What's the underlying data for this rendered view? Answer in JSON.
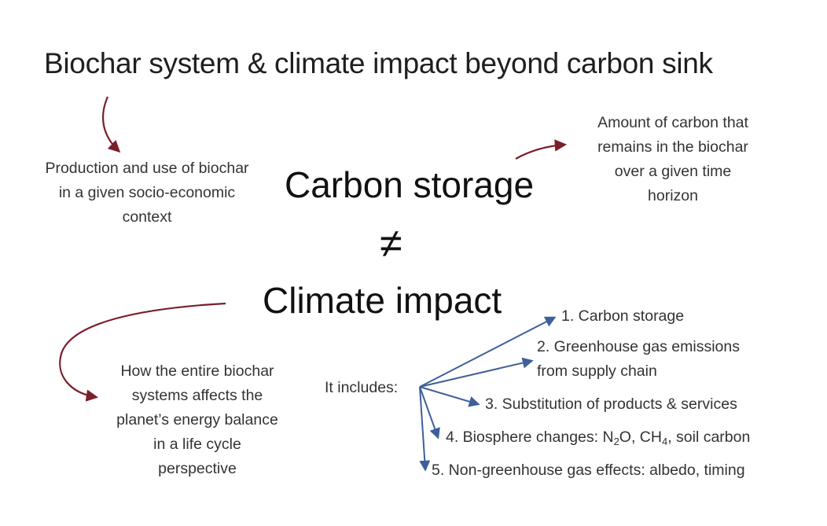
{
  "title": "Biochar system & climate impact beyond carbon sink",
  "notes": {
    "biochar_system": [
      "Production and use of biochar",
      "in a given socio-economic",
      "context"
    ],
    "carbon_storage_def": [
      "Amount of carbon that",
      "remains in the biochar",
      "over a given time",
      "horizon"
    ],
    "climate_impact_def": [
      "How the entire biochar",
      "systems affects the",
      "planet’s energy balance",
      "in a life cycle",
      "perspective"
    ]
  },
  "terms": {
    "carbon_storage": "Carbon storage",
    "not_equal": "≠",
    "climate_impact": "Climate impact"
  },
  "includes": {
    "label": "It includes:",
    "items": [
      {
        "text": "1. Carbon storage"
      },
      {
        "line1": "2. Greenhouse gas emissions",
        "line2": "from supply chain"
      },
      {
        "text": "3. Substitution of products & services"
      },
      {
        "pre": "4. Biosphere changes: N",
        "sub1": "2",
        "mid": "O, CH",
        "sub2": "4",
        "post": ", soil carbon"
      },
      {
        "text": "5. Non-greenhouse gas effects: albedo, timing"
      }
    ]
  },
  "colors": {
    "maroon_arrow": "#7a1f2b",
    "blue_arrow": "#3f5f9a"
  }
}
